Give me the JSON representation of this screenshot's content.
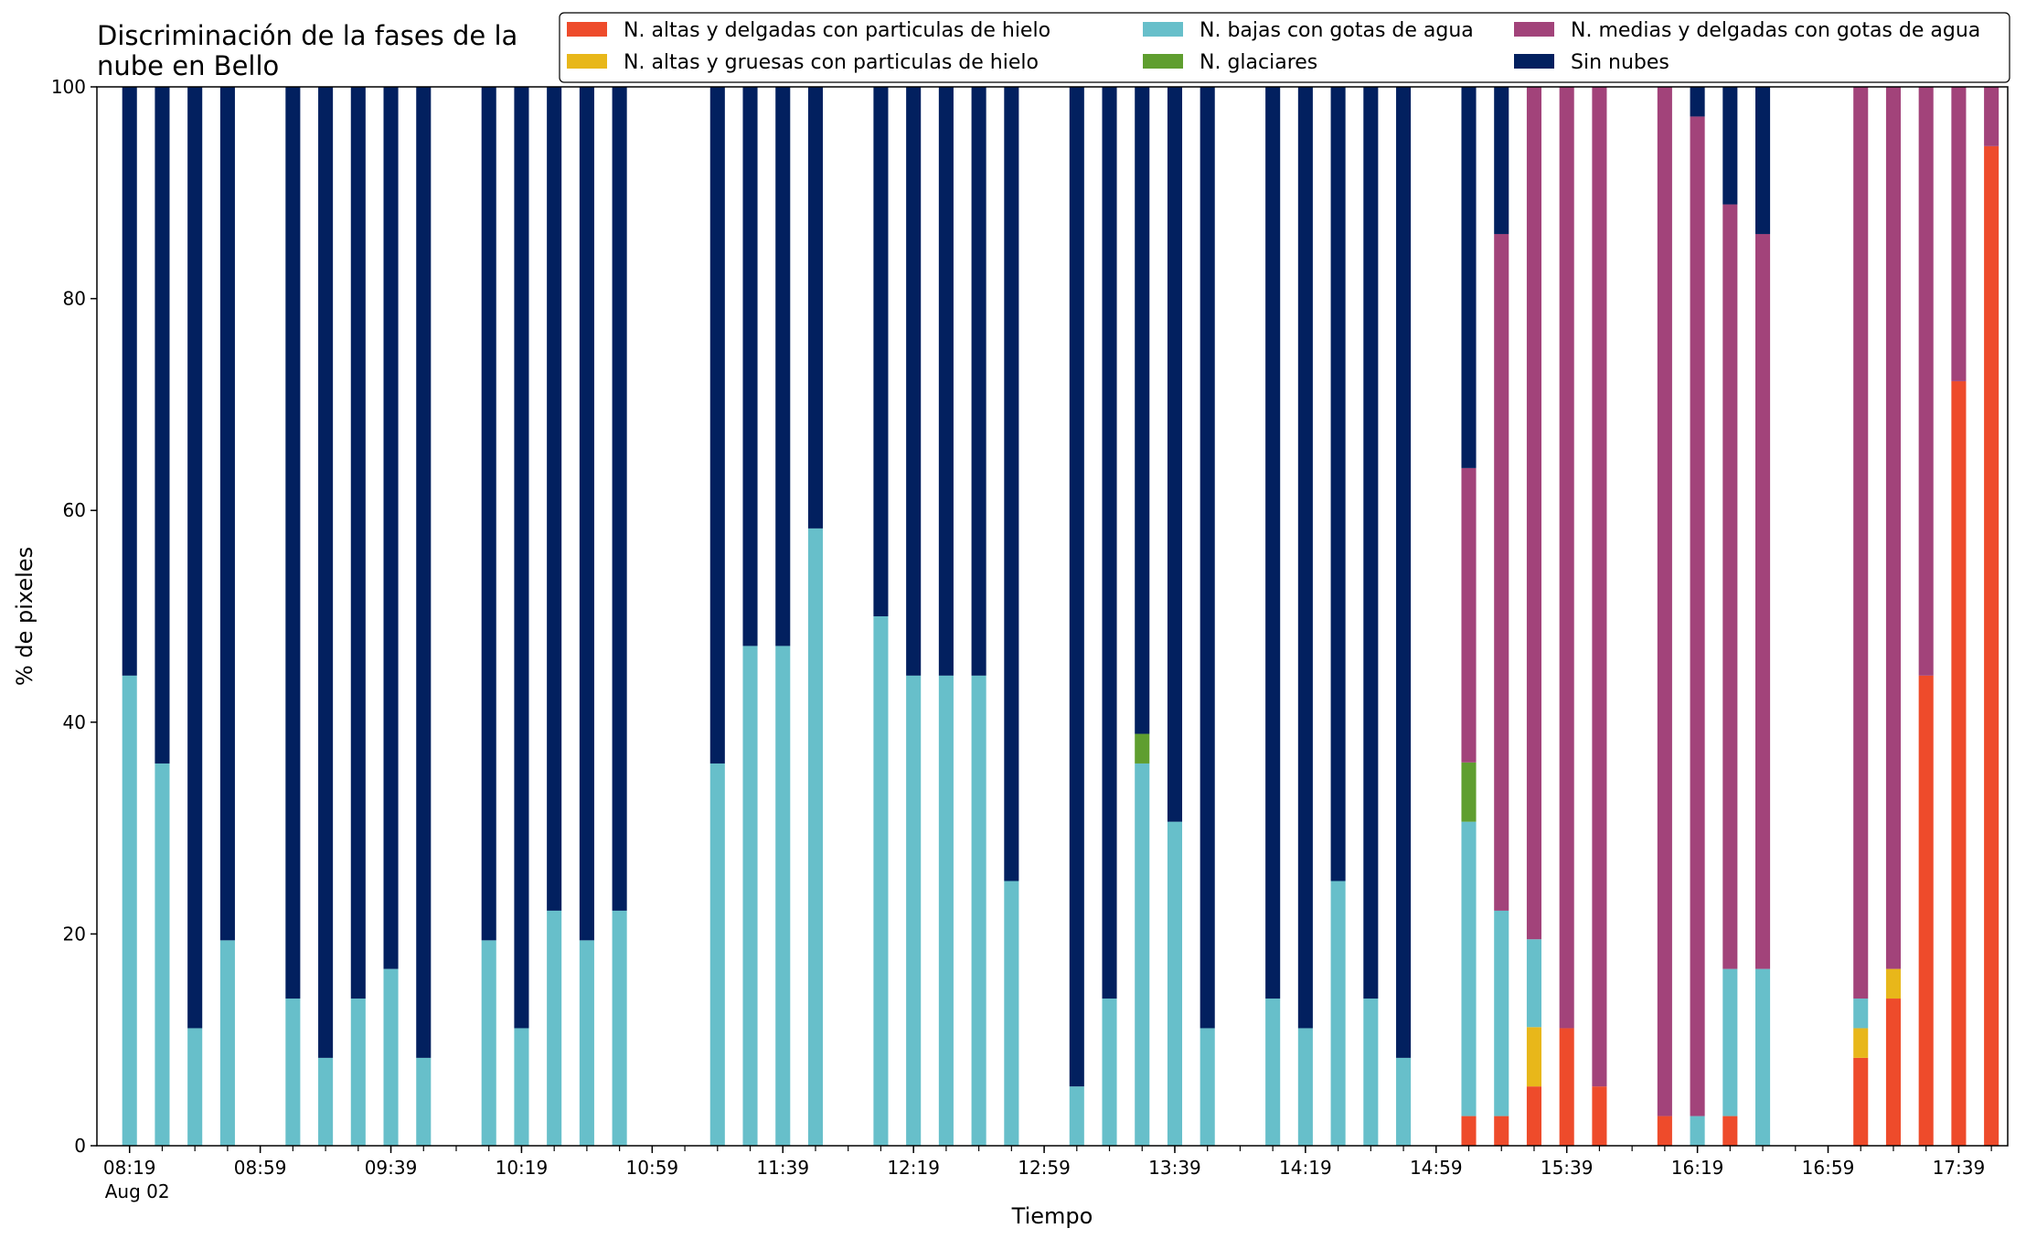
{
  "chart_data": {
    "type": "bar",
    "stacked": true,
    "title": [
      "Discriminación de la fases de la",
      "nube en Bello"
    ],
    "xlabel": "Tiempo",
    "ylabel": "% de pixeles",
    "ylim": [
      0,
      100
    ],
    "yticks": [
      0,
      20,
      40,
      60,
      80,
      100
    ],
    "xlim_minutes": [
      -10,
      575
    ],
    "xticks": [
      {
        "m": 0,
        "label": "08:19",
        "sub": "Aug 02"
      },
      {
        "m": 40,
        "label": "08:59"
      },
      {
        "m": 80,
        "label": "09:39"
      },
      {
        "m": 120,
        "label": "10:19"
      },
      {
        "m": 160,
        "label": "10:59"
      },
      {
        "m": 200,
        "label": "11:39"
      },
      {
        "m": 240,
        "label": "12:19"
      },
      {
        "m": 280,
        "label": "12:59"
      },
      {
        "m": 320,
        "label": "13:39"
      },
      {
        "m": 360,
        "label": "14:19"
      },
      {
        "m": 400,
        "label": "14:59"
      },
      {
        "m": 440,
        "label": "15:39"
      },
      {
        "m": 480,
        "label": "16:19"
      },
      {
        "m": 520,
        "label": "16:59"
      },
      {
        "m": 560,
        "label": "17:39"
      }
    ],
    "grid": false,
    "legend_position": "top-right",
    "series": [
      {
        "key": "alt_del",
        "name": "N. altas y delgadas con particulas de hielo",
        "color": "#ee4b2b"
      },
      {
        "key": "alt_gru",
        "name": "N. altas y gruesas con particulas de hielo",
        "color": "#e8b71a"
      },
      {
        "key": "baj",
        "name": "N. bajas con gotas de agua",
        "color": "#67bfca"
      },
      {
        "key": "gla",
        "name": "N. glaciares",
        "color": "#5f9e2f"
      },
      {
        "key": "med",
        "name": "N. medias y delgadas con gotas de agua",
        "color": "#a2437a"
      },
      {
        "key": "sin",
        "name": "Sin nubes",
        "color": "#02205f"
      }
    ],
    "legend_order": [
      "alt_del",
      "alt_gru",
      "baj",
      "gla",
      "med",
      "sin"
    ],
    "bars": [
      {
        "t": "08:19",
        "m": 0,
        "v": [
          0,
          0,
          44.4,
          0,
          0,
          55.6
        ]
      },
      {
        "t": "08:29",
        "m": 10,
        "v": [
          0,
          0,
          36.1,
          0,
          0,
          63.9
        ]
      },
      {
        "t": "08:39",
        "m": 20,
        "v": [
          0,
          0,
          11.1,
          0,
          0,
          88.9
        ]
      },
      {
        "t": "08:49",
        "m": 30,
        "v": [
          0,
          0,
          19.4,
          0,
          0,
          80.6
        ]
      },
      {
        "t": "09:09",
        "m": 50,
        "v": [
          0,
          0,
          13.9,
          0,
          0,
          86.1
        ]
      },
      {
        "t": "09:19",
        "m": 60,
        "v": [
          0,
          0,
          8.3,
          0,
          0,
          91.7
        ]
      },
      {
        "t": "09:29",
        "m": 70,
        "v": [
          0,
          0,
          13.9,
          0,
          0,
          86.1
        ]
      },
      {
        "t": "09:39",
        "m": 80,
        "v": [
          0,
          0,
          16.7,
          0,
          0,
          83.3
        ]
      },
      {
        "t": "09:49",
        "m": 90,
        "v": [
          0,
          0,
          8.3,
          0,
          0,
          91.7
        ]
      },
      {
        "t": "10:09",
        "m": 110,
        "v": [
          0,
          0,
          19.4,
          0,
          0,
          80.6
        ]
      },
      {
        "t": "10:19",
        "m": 120,
        "v": [
          0,
          0,
          11.1,
          0,
          0,
          88.9
        ]
      },
      {
        "t": "10:29",
        "m": 130,
        "v": [
          0,
          0,
          22.2,
          0,
          0,
          77.8
        ]
      },
      {
        "t": "10:39",
        "m": 140,
        "v": [
          0,
          0,
          19.4,
          0,
          0,
          80.6
        ]
      },
      {
        "t": "10:49",
        "m": 150,
        "v": [
          0,
          0,
          22.2,
          0,
          0,
          77.8
        ]
      },
      {
        "t": "11:19",
        "m": 180,
        "v": [
          0,
          0,
          36.1,
          0,
          0,
          63.9
        ]
      },
      {
        "t": "11:29",
        "m": 190,
        "v": [
          0,
          0,
          47.2,
          0,
          0,
          52.8
        ]
      },
      {
        "t": "11:39",
        "m": 200,
        "v": [
          0,
          0,
          47.2,
          0,
          0,
          52.8
        ]
      },
      {
        "t": "11:49",
        "m": 210,
        "v": [
          0,
          0,
          58.3,
          0,
          0,
          41.7
        ]
      },
      {
        "t": "12:09",
        "m": 230,
        "v": [
          0,
          0,
          50.0,
          0,
          0,
          50.0
        ]
      },
      {
        "t": "12:19",
        "m": 240,
        "v": [
          0,
          0,
          44.4,
          0,
          0,
          55.6
        ]
      },
      {
        "t": "12:29",
        "m": 250,
        "v": [
          0,
          0,
          44.4,
          0,
          0,
          55.6
        ]
      },
      {
        "t": "12:39",
        "m": 260,
        "v": [
          0,
          0,
          44.4,
          0,
          0,
          55.6
        ]
      },
      {
        "t": "12:49",
        "m": 270,
        "v": [
          0,
          0,
          25.0,
          0,
          0,
          75.0
        ]
      },
      {
        "t": "13:09",
        "m": 290,
        "v": [
          0,
          0,
          5.6,
          0,
          0,
          94.4
        ]
      },
      {
        "t": "13:19",
        "m": 300,
        "v": [
          0,
          0,
          13.9,
          0,
          0,
          86.1
        ]
      },
      {
        "t": "13:29",
        "m": 310,
        "v": [
          0,
          0,
          36.1,
          2.8,
          0,
          61.1
        ]
      },
      {
        "t": "13:39",
        "m": 320,
        "v": [
          0,
          0,
          30.6,
          0,
          0,
          69.4
        ]
      },
      {
        "t": "13:49",
        "m": 330,
        "v": [
          0,
          0,
          11.1,
          0,
          0,
          88.9
        ]
      },
      {
        "t": "14:09",
        "m": 350,
        "v": [
          0,
          0,
          13.9,
          0,
          0,
          86.1
        ]
      },
      {
        "t": "14:19",
        "m": 360,
        "v": [
          0,
          0,
          11.1,
          0,
          0,
          88.9
        ]
      },
      {
        "t": "14:29",
        "m": 370,
        "v": [
          0,
          0,
          25.0,
          0,
          0,
          75.0
        ]
      },
      {
        "t": "14:39",
        "m": 380,
        "v": [
          0,
          0,
          13.9,
          0,
          0,
          86.1
        ]
      },
      {
        "t": "14:49",
        "m": 390,
        "v": [
          0,
          0,
          8.3,
          0,
          0,
          91.7
        ]
      },
      {
        "t": "15:09",
        "m": 410,
        "v": [
          2.8,
          0,
          27.8,
          5.6,
          27.8,
          36.0
        ]
      },
      {
        "t": "15:19",
        "m": 420,
        "v": [
          2.8,
          0,
          19.4,
          0,
          63.9,
          13.9
        ]
      },
      {
        "t": "15:29",
        "m": 430,
        "v": [
          5.6,
          5.6,
          8.3,
          0,
          80.5,
          0
        ]
      },
      {
        "t": "15:39",
        "m": 440,
        "v": [
          11.1,
          0,
          0,
          0,
          88.9,
          0
        ]
      },
      {
        "t": "15:49",
        "m": 450,
        "v": [
          5.6,
          0,
          0,
          0,
          94.4,
          0
        ]
      },
      {
        "t": "16:09",
        "m": 470,
        "v": [
          2.8,
          0,
          0,
          0,
          97.2,
          0
        ]
      },
      {
        "t": "16:19",
        "m": 480,
        "v": [
          0,
          0,
          2.8,
          0,
          94.4,
          2.8
        ]
      },
      {
        "t": "16:29",
        "m": 490,
        "v": [
          2.8,
          0,
          13.9,
          0,
          72.2,
          11.1
        ]
      },
      {
        "t": "16:39",
        "m": 500,
        "v": [
          0,
          0,
          16.7,
          0,
          69.4,
          13.9
        ]
      },
      {
        "t": "17:09",
        "m": 530,
        "v": [
          8.3,
          2.8,
          2.8,
          0,
          86.1,
          0
        ]
      },
      {
        "t": "17:19",
        "m": 540,
        "v": [
          13.9,
          2.8,
          0,
          0,
          83.3,
          0
        ]
      },
      {
        "t": "17:29",
        "m": 550,
        "v": [
          44.4,
          0,
          0,
          0,
          55.6,
          0
        ]
      },
      {
        "t": "17:39",
        "m": 560,
        "v": [
          72.2,
          0,
          0,
          0,
          27.8,
          0
        ]
      },
      {
        "t": "17:49",
        "m": 570,
        "v": [
          94.4,
          0,
          0,
          0,
          5.6,
          0
        ]
      }
    ]
  }
}
